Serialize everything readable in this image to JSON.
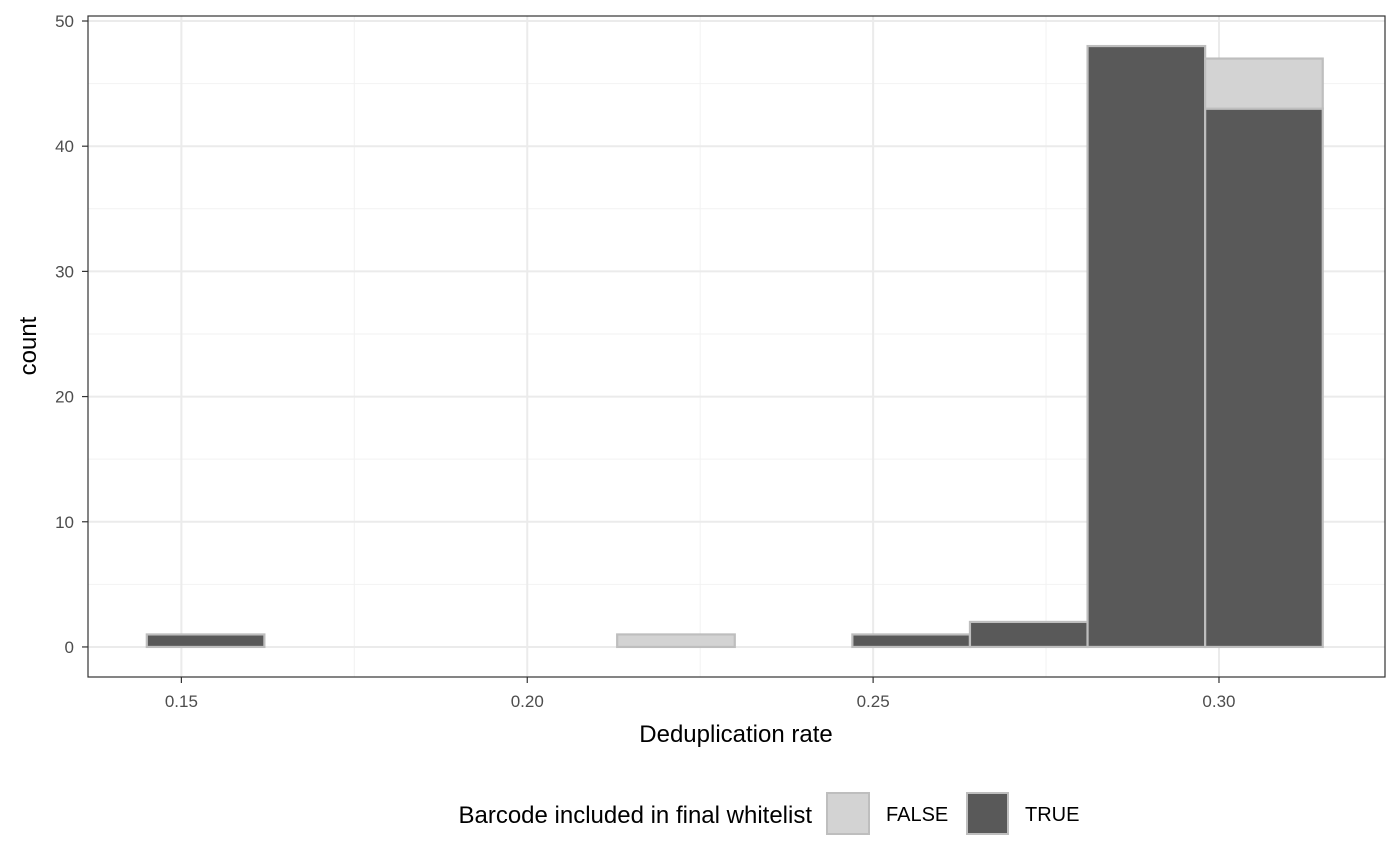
{
  "chart_data": {
    "type": "bar",
    "subtype": "stacked histogram",
    "xlabel": "Deduplication rate",
    "ylabel": "count",
    "xlim": [
      0.1365,
      0.324
    ],
    "ylim": [
      -2.4,
      50.4
    ],
    "x_ticks": [
      "0.15",
      "0.20",
      "0.25",
      "0.30"
    ],
    "x_tick_values": [
      0.15,
      0.2,
      0.25,
      0.3
    ],
    "y_ticks": [
      "0",
      "10",
      "20",
      "30",
      "40",
      "50"
    ],
    "y_tick_values": [
      0,
      10,
      20,
      30,
      40,
      50
    ],
    "grid": true,
    "legend": {
      "title": "Barcode included in final whitelist",
      "position": "bottom",
      "entries": [
        "FALSE",
        "TRUE"
      ]
    },
    "bins": {
      "start": [
        0.145,
        0.162,
        0.179,
        0.196,
        0.213,
        0.23,
        0.247,
        0.264,
        0.281,
        0.298
      ],
      "end": [
        0.162,
        0.179,
        0.196,
        0.213,
        0.23,
        0.247,
        0.264,
        0.281,
        0.298,
        0.315
      ]
    },
    "series": [
      {
        "name": "FALSE",
        "color": "#d3d3d3",
        "values": [
          0,
          0,
          0,
          0,
          1,
          0,
          0,
          0,
          0,
          4
        ]
      },
      {
        "name": "TRUE",
        "color": "#595959",
        "values": [
          1,
          0,
          0,
          0,
          0,
          0,
          1,
          2,
          48,
          43
        ]
      }
    ],
    "bar_outline_color": "#bebebe"
  }
}
